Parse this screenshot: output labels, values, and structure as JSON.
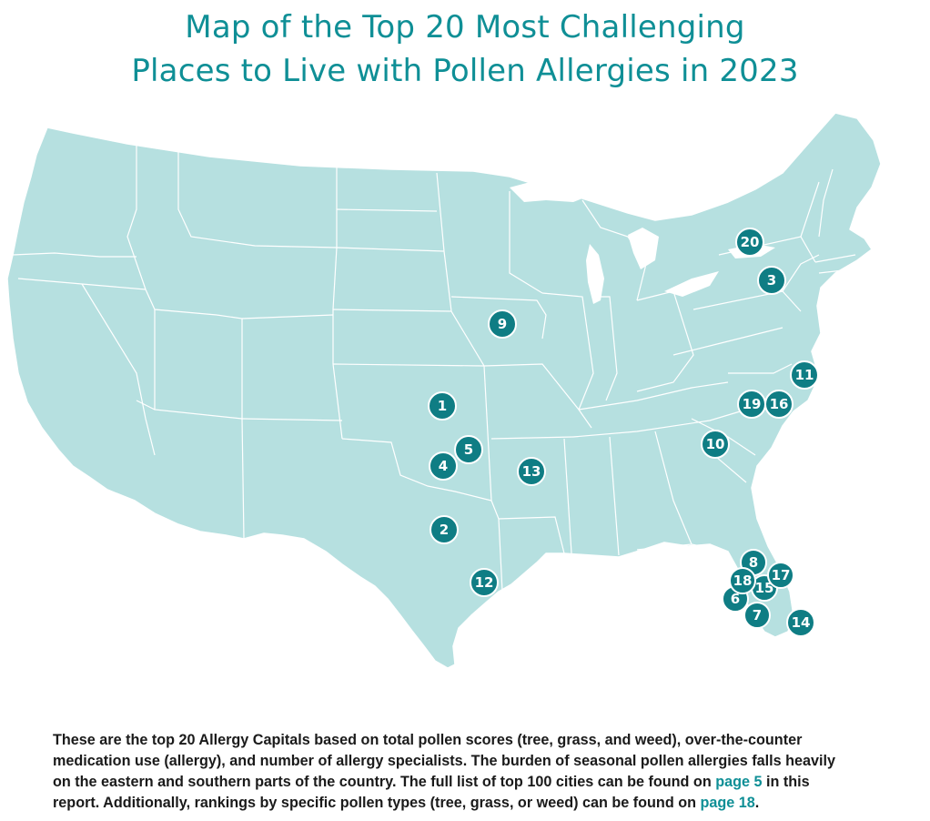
{
  "title": {
    "line1": "Map of the Top 20 Most Challenging",
    "line2": "Places to Live with Pollen Allergies in 2023"
  },
  "colors": {
    "title": "#0f8f96",
    "land": "#b6e0e0",
    "border": "#ffffff",
    "marker": "#0f7d84",
    "link": "#0f8f96",
    "text": "#1a1a1a"
  },
  "markers": [
    "1",
    "2",
    "3",
    "4",
    "5",
    "6",
    "7",
    "8",
    "9",
    "10",
    "11",
    "12",
    "13",
    "14",
    "15",
    "16",
    "17",
    "18",
    "19",
    "20"
  ],
  "caption": {
    "part1": "These are the top 20 Allergy Capitals based on total pollen scores (tree, grass, and weed), over-the-counter medication use (allergy), and number of allergy specialists. The burden of seasonal pollen allergies falls heavily on the eastern and southern parts of the country. The full list of top 100 cities can be found on ",
    "link1": "page 5",
    "part2": " in this report. Additionally, rankings by specific pollen types (tree, grass, or weed) can be found on ",
    "link2": "page 18",
    "part3": "."
  }
}
